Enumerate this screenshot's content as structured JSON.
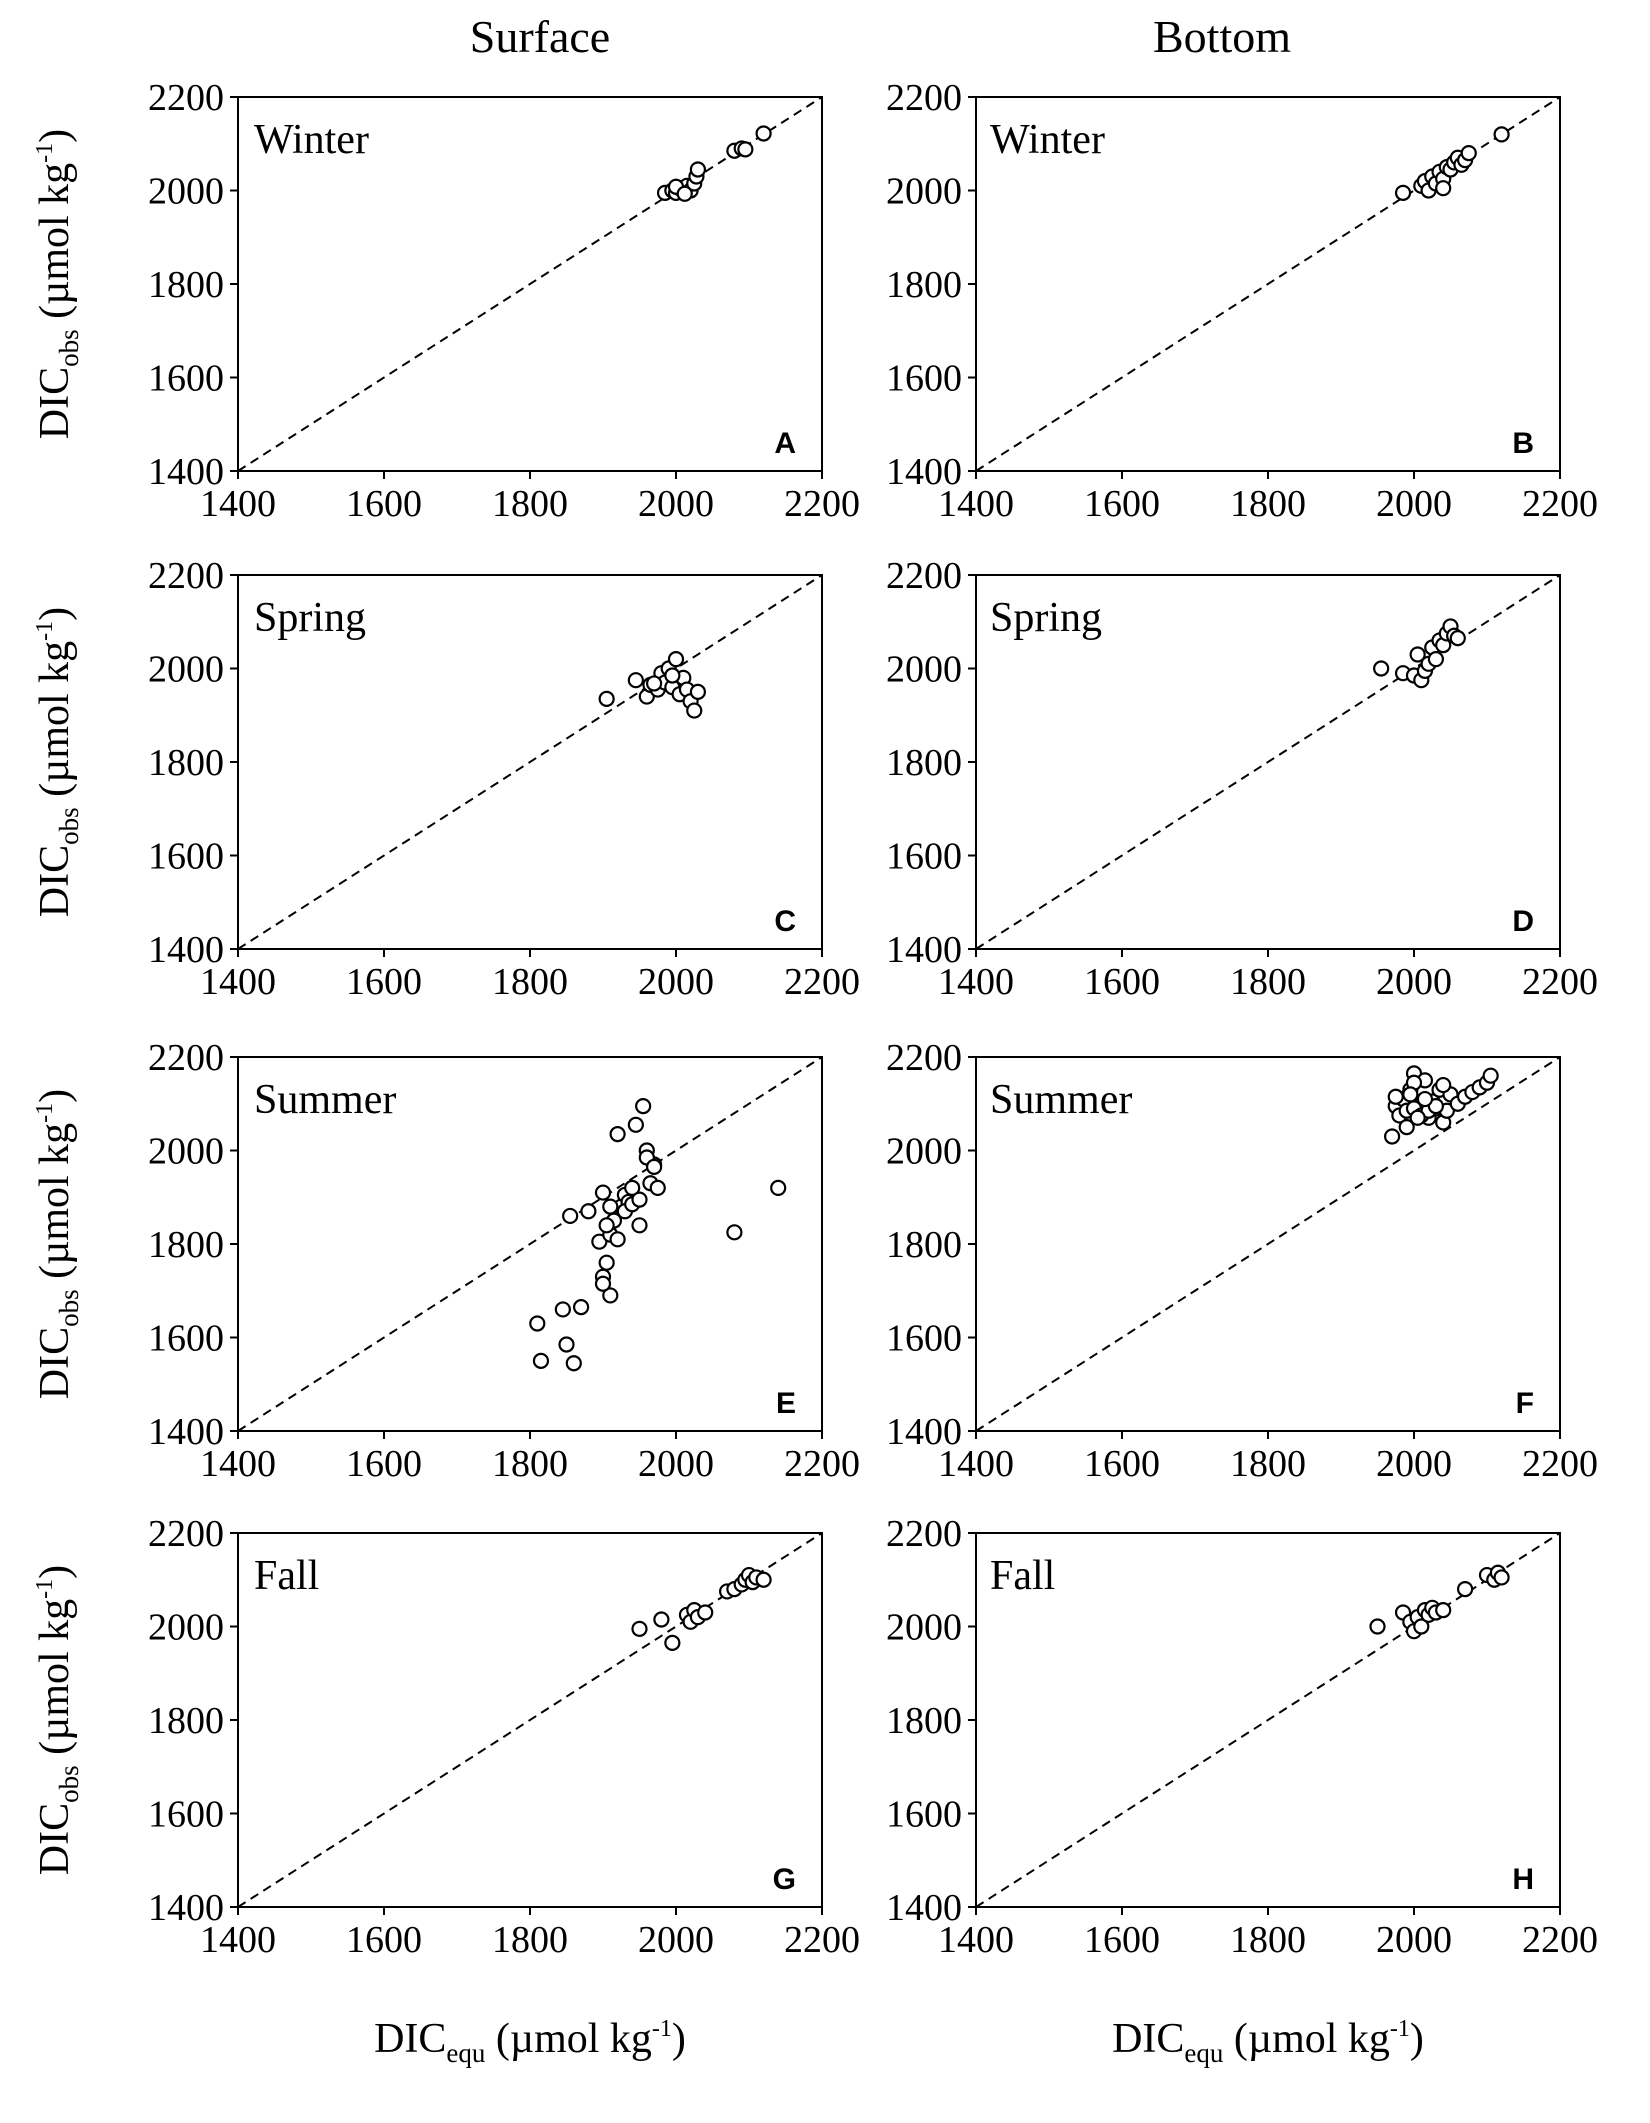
{
  "column_titles": [
    "Surface",
    "Bottom"
  ],
  "axes": {
    "ylabel": {
      "main": "DIC",
      "sub": "obs",
      "unit_pre": " (µmol kg",
      "sup": "-1",
      "unit_post": ")"
    },
    "xlabel": {
      "main": "DIC",
      "sub": "equ",
      "unit_pre": " (µmol kg",
      "sup": "-1",
      "unit_post": ")"
    },
    "ticks": [
      "1400",
      "1600",
      "1800",
      "2000",
      "2200"
    ]
  },
  "chart_data": [
    {
      "panel": "A",
      "season": "Winter",
      "type": "scatter",
      "xlim": [
        1400,
        2200
      ],
      "ylim": [
        1400,
        2200
      ],
      "reference_line": "1:1",
      "x": [
        1985,
        1995,
        2000,
        2005,
        2010,
        2015,
        2020,
        2025,
        2028,
        2030,
        2000,
        2012,
        2080,
        2090,
        2095,
        2120
      ],
      "y": [
        1995,
        2000,
        1995,
        2005,
        1998,
        2010,
        2000,
        2015,
        2030,
        2045,
        2008,
        1993,
        2085,
        2090,
        2088,
        2122
      ]
    },
    {
      "panel": "B",
      "season": "Winter",
      "type": "scatter",
      "xlim": [
        1400,
        2200
      ],
      "ylim": [
        1400,
        2200
      ],
      "reference_line": "1:1",
      "x": [
        1985,
        2010,
        2015,
        2020,
        2025,
        2030,
        2035,
        2040,
        2045,
        2050,
        2055,
        2060,
        2065,
        2070,
        2075,
        2120,
        2040
      ],
      "y": [
        1995,
        2010,
        2020,
        2000,
        2030,
        2015,
        2040,
        2025,
        2050,
        2045,
        2060,
        2070,
        2055,
        2065,
        2080,
        2120,
        2005
      ]
    },
    {
      "panel": "C",
      "season": "Spring",
      "type": "scatter",
      "xlim": [
        1400,
        2200
      ],
      "ylim": [
        1400,
        2200
      ],
      "reference_line": "1:1",
      "x": [
        1905,
        1945,
        1960,
        1965,
        1975,
        1980,
        1985,
        1990,
        1995,
        2000,
        2005,
        2010,
        2015,
        2020,
        2025,
        2030,
        1970,
        1995
      ],
      "y": [
        1935,
        1975,
        1940,
        1965,
        1955,
        1990,
        1970,
        2000,
        1960,
        2020,
        1945,
        1980,
        1955,
        1930,
        1910,
        1950,
        1968,
        1985
      ]
    },
    {
      "panel": "D",
      "season": "Spring",
      "type": "scatter",
      "xlim": [
        1400,
        2200
      ],
      "ylim": [
        1400,
        2200
      ],
      "reference_line": "1:1",
      "x": [
        1955,
        1985,
        2000,
        2005,
        2010,
        2015,
        2020,
        2025,
        2030,
        2035,
        2040,
        2045,
        2050,
        2055,
        2060
      ],
      "y": [
        2000,
        1990,
        1985,
        2030,
        1975,
        1995,
        2010,
        2045,
        2020,
        2060,
        2050,
        2075,
        2090,
        2070,
        2065
      ]
    },
    {
      "panel": "E",
      "season": "Summer",
      "type": "scatter",
      "xlim": [
        1400,
        2200
      ],
      "ylim": [
        1400,
        2200
      ],
      "reference_line": "1:1",
      "x": [
        1810,
        1815,
        1845,
        1850,
        1860,
        1870,
        1855,
        1880,
        1895,
        1900,
        1905,
        1910,
        1915,
        1920,
        1925,
        1930,
        1935,
        1940,
        1945,
        1950,
        1955,
        1960,
        1965,
        1970,
        1975,
        1900,
        1910,
        1920,
        1930,
        1940,
        1950,
        1960,
        1970,
        1900,
        1905,
        1910,
        2080,
        2140
      ],
      "y": [
        1630,
        1550,
        1660,
        1585,
        1545,
        1665,
        1860,
        1870,
        1805,
        1730,
        1760,
        1820,
        1850,
        2035,
        1880,
        1905,
        1890,
        1920,
        2055,
        1840,
        2095,
        2000,
        1930,
        1970,
        1920,
        1910,
        1690,
        1810,
        1870,
        1885,
        1895,
        1985,
        1965,
        1715,
        1840,
        1880,
        1825,
        1920
      ]
    },
    {
      "panel": "F",
      "season": "Summer",
      "type": "scatter",
      "xlim": [
        1400,
        2200
      ],
      "ylim": [
        1400,
        2200
      ],
      "reference_line": "1:1",
      "x": [
        1970,
        1975,
        1980,
        1985,
        1990,
        1995,
        2000,
        2005,
        2010,
        2015,
        2020,
        2025,
        2030,
        2035,
        2040,
        2045,
        2050,
        2060,
        2070,
        2080,
        2090,
        2100,
        2105,
        1990,
        2000,
        2010,
        2020,
        2030,
        2000,
        1995,
        2005,
        2015,
        1975,
        2040
      ],
      "y": [
        2030,
        2095,
        2075,
        2110,
        2050,
        2130,
        2165,
        2080,
        2095,
        2150,
        2070,
        2105,
        2090,
        2130,
        2060,
        2085,
        2120,
        2100,
        2115,
        2125,
        2135,
        2145,
        2160,
        2085,
        2090,
        2075,
        2085,
        2095,
        2145,
        2120,
        2070,
        2110,
        2115,
        2140
      ]
    },
    {
      "panel": "G",
      "season": "Fall",
      "type": "scatter",
      "xlim": [
        1400,
        2200
      ],
      "ylim": [
        1400,
        2200
      ],
      "reference_line": "1:1",
      "x": [
        1950,
        1980,
        1995,
        2015,
        2020,
        2025,
        2030,
        2040,
        2070,
        2080,
        2090,
        2095,
        2100,
        2105,
        2110,
        2120
      ],
      "y": [
        1995,
        2015,
        1965,
        2025,
        2010,
        2035,
        2020,
        2030,
        2075,
        2080,
        2090,
        2100,
        2110,
        2095,
        2105,
        2100
      ]
    },
    {
      "panel": "H",
      "season": "Fall",
      "type": "scatter",
      "xlim": [
        1400,
        2200
      ],
      "ylim": [
        1400,
        2200
      ],
      "reference_line": "1:1",
      "x": [
        1950,
        1985,
        1995,
        2000,
        2005,
        2010,
        2015,
        2020,
        2025,
        2030,
        2040,
        2070,
        2100,
        2110,
        2115,
        2120
      ],
      "y": [
        2000,
        2030,
        2010,
        1990,
        2020,
        2000,
        2035,
        2025,
        2040,
        2030,
        2035,
        2080,
        2110,
        2100,
        2115,
        2105
      ]
    }
  ]
}
